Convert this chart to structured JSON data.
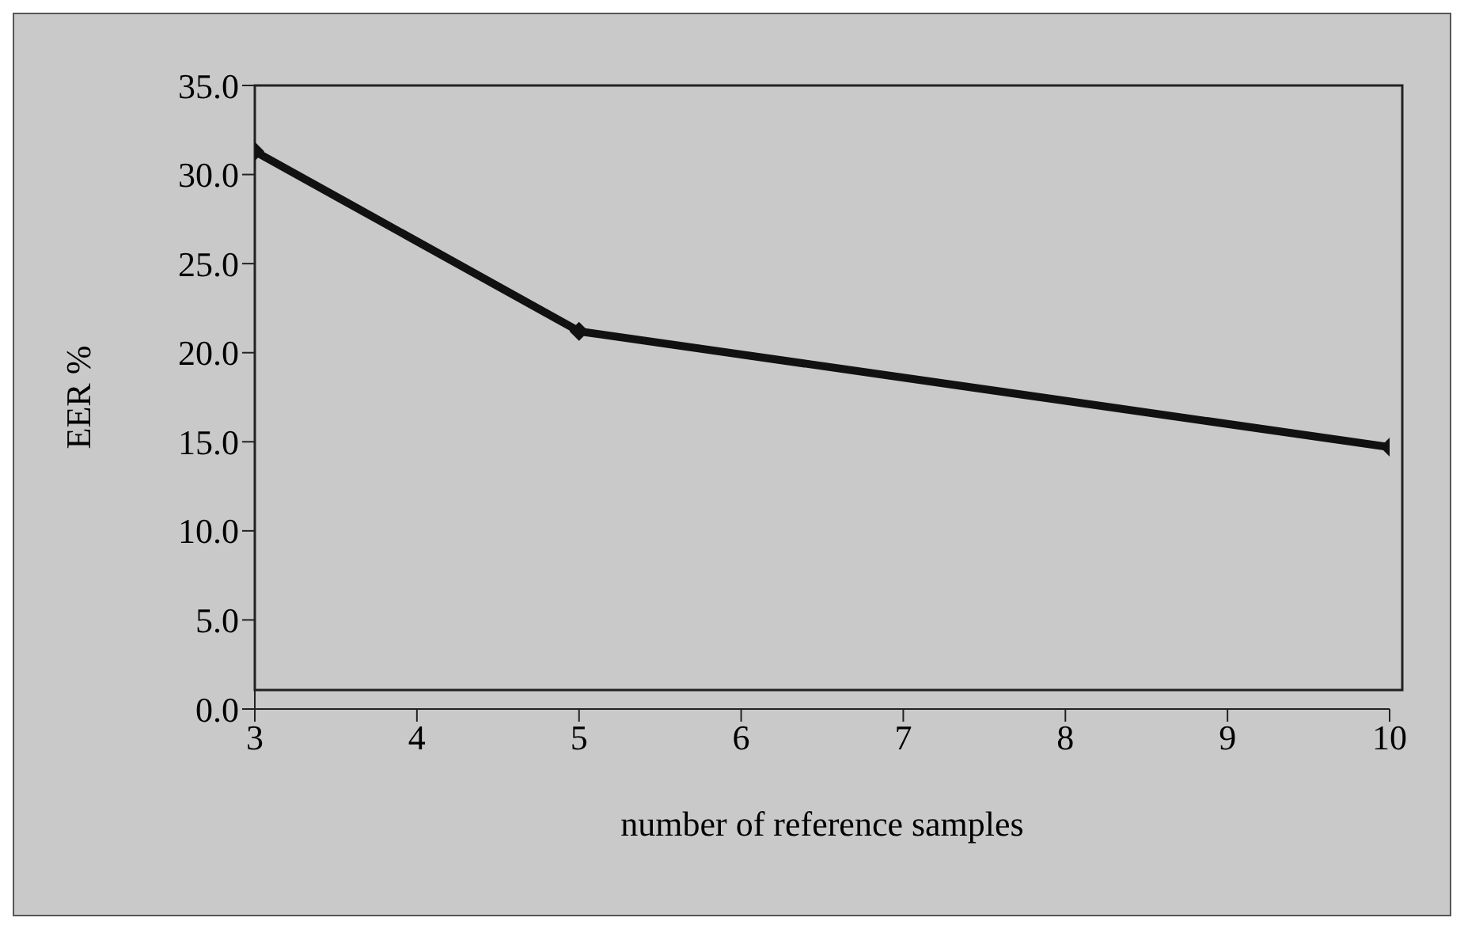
{
  "chart_data": {
    "type": "line",
    "xlabel": "number of reference samples",
    "ylabel": "EER %",
    "x": [
      3,
      5,
      10
    ],
    "series": [
      {
        "color": "#111111",
        "values": [
          31.3,
          21.2,
          14.7
        ]
      }
    ],
    "xlim": [
      3,
      10
    ],
    "xticks": [
      3,
      4,
      5,
      6,
      7,
      8,
      9,
      10
    ],
    "ylim": [
      0,
      35
    ],
    "yticks": [
      {
        "value": 0,
        "label": "0.0"
      },
      {
        "value": 5,
        "label": "5.0"
      },
      {
        "value": 10,
        "label": "10.0"
      },
      {
        "value": 15,
        "label": "15.0"
      },
      {
        "value": 20,
        "label": "20.0"
      },
      {
        "value": 25,
        "label": "25.0"
      },
      {
        "value": 30,
        "label": "30.0"
      },
      {
        "value": 35,
        "label": "35.0"
      }
    ],
    "grid": false,
    "legend": false,
    "marker": "diamond",
    "line_style": "solid"
  }
}
